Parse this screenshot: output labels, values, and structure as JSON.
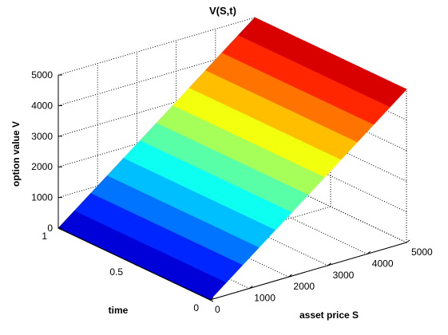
{
  "chart_data": {
    "type": "surface",
    "title": "V(S,t)",
    "xlabel": "asset price S",
    "ylabel": "time",
    "zlabel": "option value V",
    "x_ticks": [
      "0",
      "1000",
      "2000",
      "3000",
      "4000",
      "5000"
    ],
    "y_ticks": [
      "0",
      "0.5",
      "1"
    ],
    "z_ticks": [
      "0",
      "1000",
      "2000",
      "3000",
      "4000",
      "5000"
    ],
    "xlim": [
      0,
      5000
    ],
    "ylim": [
      0,
      1
    ],
    "zlim": [
      0,
      5000
    ],
    "grid": true,
    "colormap": "jet",
    "surface": {
      "S": [
        0,
        5000
      ],
      "t": [
        0,
        1
      ],
      "description_values": [
        {
          "S": 0,
          "t": 0,
          "V": 0
        },
        {
          "S": 0,
          "t": 1,
          "V": 0
        },
        {
          "S": 5000,
          "t": 0,
          "V": 5000
        },
        {
          "S": 5000,
          "t": 1,
          "V": 5000
        }
      ],
      "bands": 12
    }
  }
}
